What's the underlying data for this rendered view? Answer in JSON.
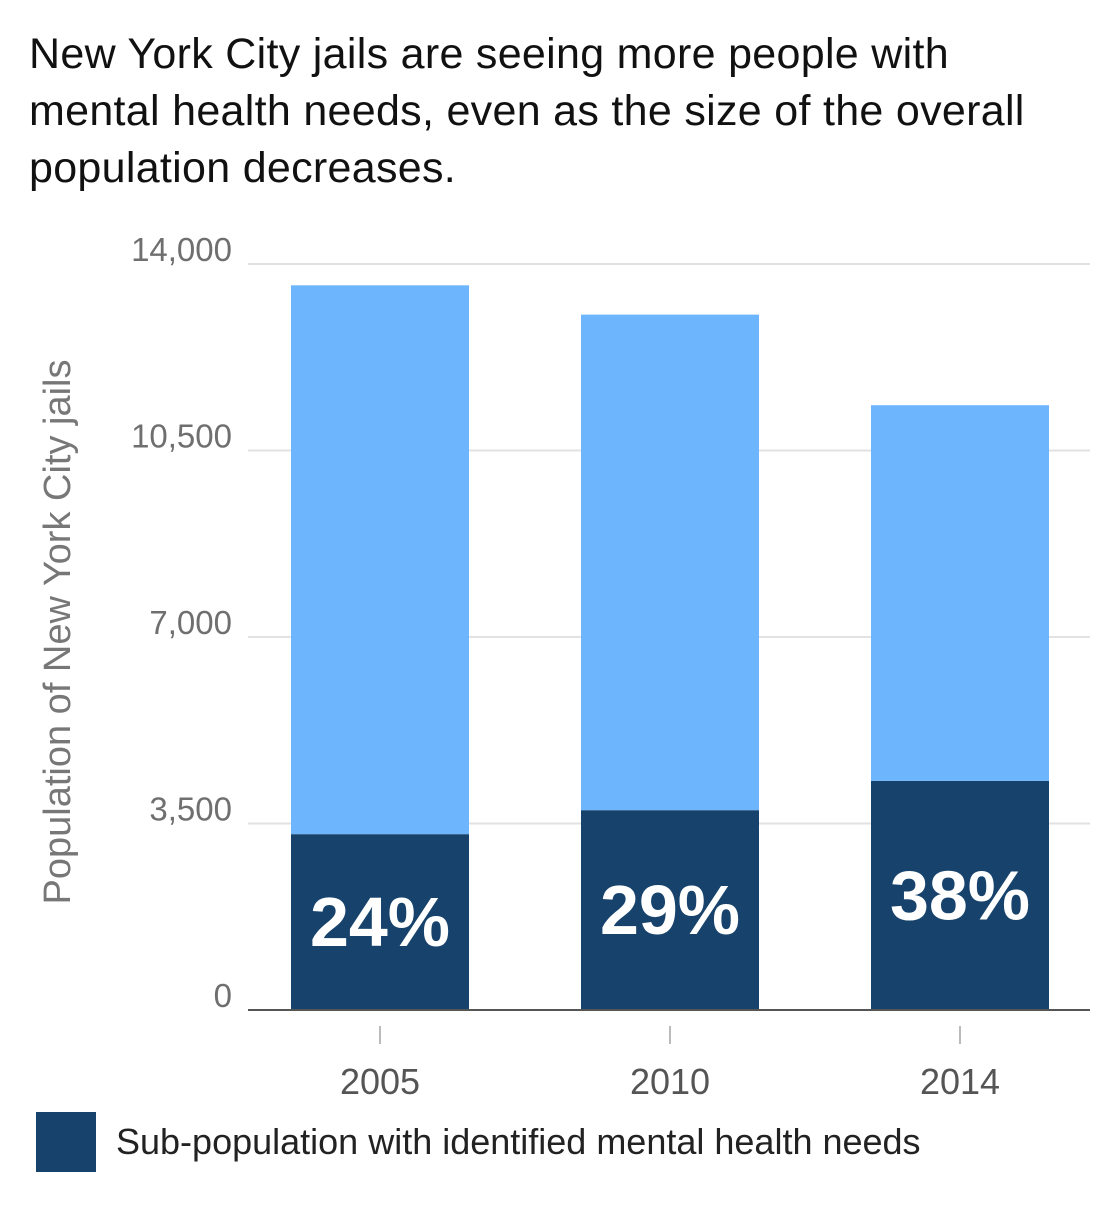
{
  "title": "New York City jails are seeing more people with mental health needs, even as the size of the overall population decreases.",
  "chart_data": {
    "type": "bar",
    "stacked": true,
    "categories": [
      "2005",
      "2010",
      "2014"
    ],
    "series": [
      {
        "name": "Sub-population with identified mental health needs",
        "color": "#16426b",
        "values": [
          3300,
          3750,
          4300
        ]
      },
      {
        "name": "",
        "color": "#6db5fd",
        "values": [
          10300,
          9300,
          7050
        ]
      }
    ],
    "totals": [
      13600,
      13050,
      11350
    ],
    "data_labels": [
      "24%",
      "29%",
      "38%"
    ],
    "ylabel": "Population of  New York City jails",
    "xlabel": "",
    "ylim": [
      0,
      14000
    ],
    "yticks": [
      0,
      3500,
      7000,
      10500,
      14000
    ],
    "ytick_labels": [
      "0",
      "3,500",
      "7,000",
      "10,500",
      "14,000"
    ],
    "grid": true,
    "legend_position": "bottom-left"
  },
  "legend": {
    "label": "Sub-population with identified mental health needs"
  }
}
